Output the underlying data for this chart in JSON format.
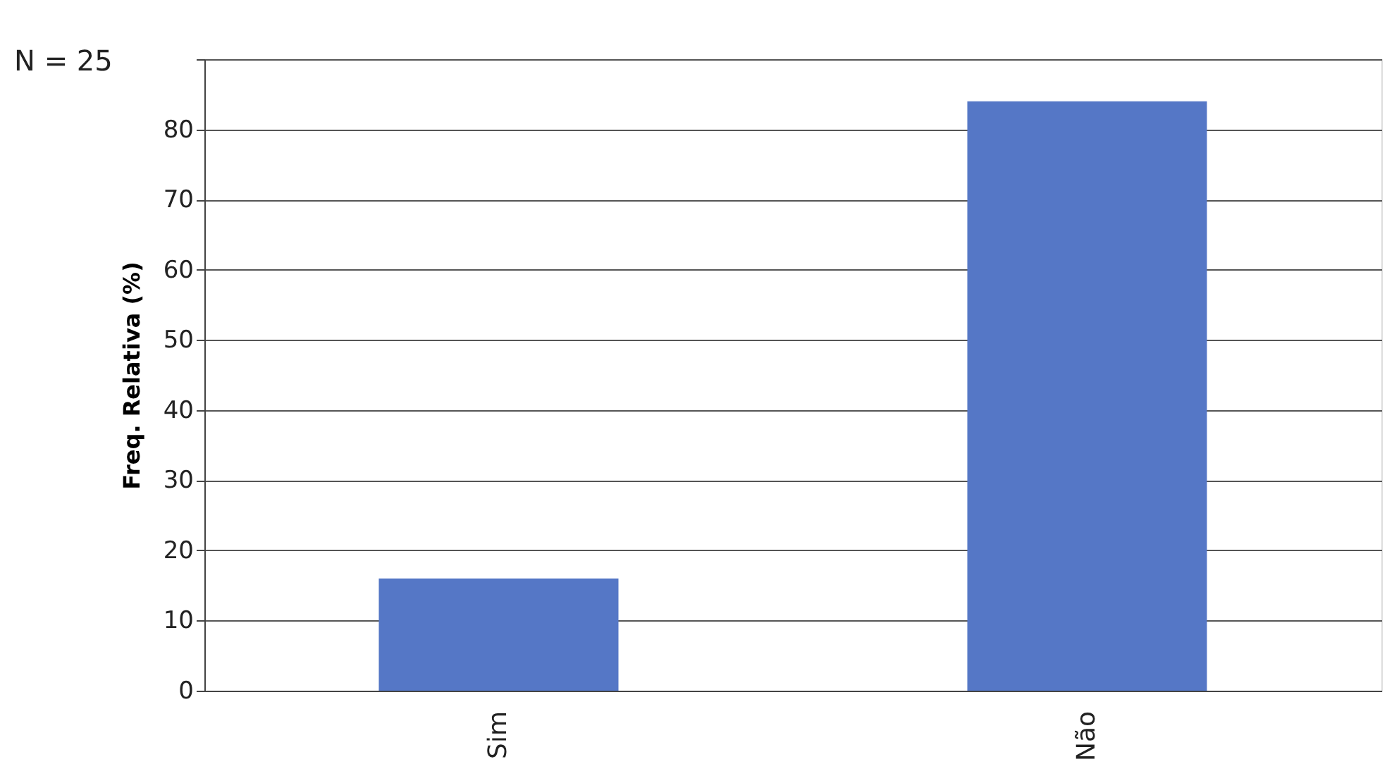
{
  "chart_data": {
    "type": "bar",
    "ylabel": "Freq. Relativa (%)",
    "categories": [
      "Sim",
      "Não"
    ],
    "values": [
      16,
      84
    ],
    "color": "#5577c6",
    "ylim": [
      0,
      90
    ],
    "yticks": [
      0,
      10,
      20,
      30,
      40,
      50,
      60,
      70,
      80,
      {
        "value": 90,
        "label": null
      }
    ],
    "grid": "y",
    "annotations": [
      "N = 25"
    ]
  }
}
